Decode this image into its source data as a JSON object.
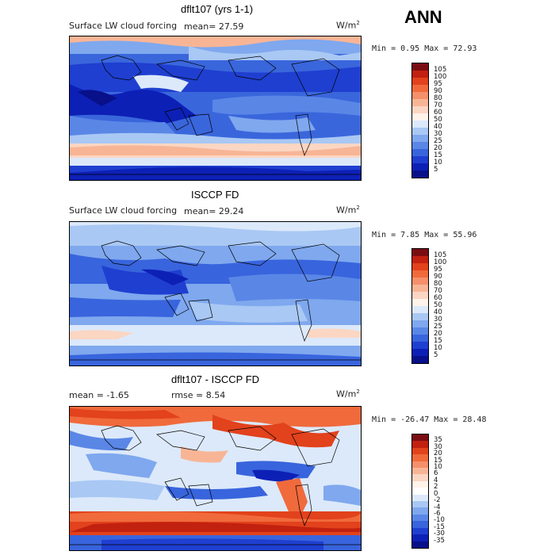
{
  "season": "ANN",
  "units": "W/m",
  "units_sup": "2",
  "panels": [
    {
      "title": "dflt107 (yrs 1-1)",
      "field_label": "Surface LW cloud forcing",
      "mean_text": "mean=  27.59",
      "minmax_text": "Min =   0.95 Max =  72.93",
      "colorbar": {
        "labels": [
          "105",
          "100",
          "95",
          "90",
          "80",
          "70",
          "60",
          "50",
          "40",
          "30",
          "25",
          "20",
          "15",
          "10",
          "5"
        ],
        "colors": [
          "#7a0d12",
          "#c2210f",
          "#e2421c",
          "#f06a3c",
          "#f4906a",
          "#f8b596",
          "#fbd6c3",
          "#fff3ea",
          "#dce9fa",
          "#a9c8f4",
          "#7fa8ee",
          "#5a87e6",
          "#3864dd",
          "#1f3fd0",
          "#0d20b6",
          "#08108a"
        ]
      }
    },
    {
      "title": "ISCCP FD",
      "field_label": "Surface LW cloud forcing",
      "mean_text": "mean=  29.24",
      "minmax_text": "Min =   7.85 Max =  55.96",
      "colorbar": {
        "labels": [
          "105",
          "100",
          "95",
          "90",
          "80",
          "70",
          "60",
          "50",
          "40",
          "30",
          "25",
          "20",
          "15",
          "10",
          "5"
        ],
        "colors": [
          "#7a0d12",
          "#c2210f",
          "#e2421c",
          "#f06a3c",
          "#f4906a",
          "#f8b596",
          "#fbd6c3",
          "#fff3ea",
          "#dce9fa",
          "#a9c8f4",
          "#7fa8ee",
          "#5a87e6",
          "#3864dd",
          "#1f3fd0",
          "#0d20b6",
          "#08108a"
        ]
      }
    },
    {
      "title": "dflt107 - ISCCP FD",
      "field_label": "mean =   -1.65",
      "mean_text": "rmse =   8.54",
      "minmax_text": "Min = -26.47 Max =  28.48",
      "colorbar": {
        "labels": [
          "35",
          "30",
          "20",
          "15",
          "10",
          "6",
          "4",
          "2",
          "0",
          "-2",
          "-4",
          "-6",
          "-10",
          "-15",
          "-30",
          "-35"
        ],
        "colors": [
          "#7a0d12",
          "#c2210f",
          "#e2421c",
          "#f06a3c",
          "#f4906a",
          "#f8b596",
          "#fbd6c3",
          "#fff3ea",
          "#ffffff",
          "#dce9fa",
          "#a9c8f4",
          "#7fa8ee",
          "#5a87e6",
          "#3864dd",
          "#1f3fd0",
          "#0d20b6",
          "#08108a"
        ]
      }
    }
  ]
}
